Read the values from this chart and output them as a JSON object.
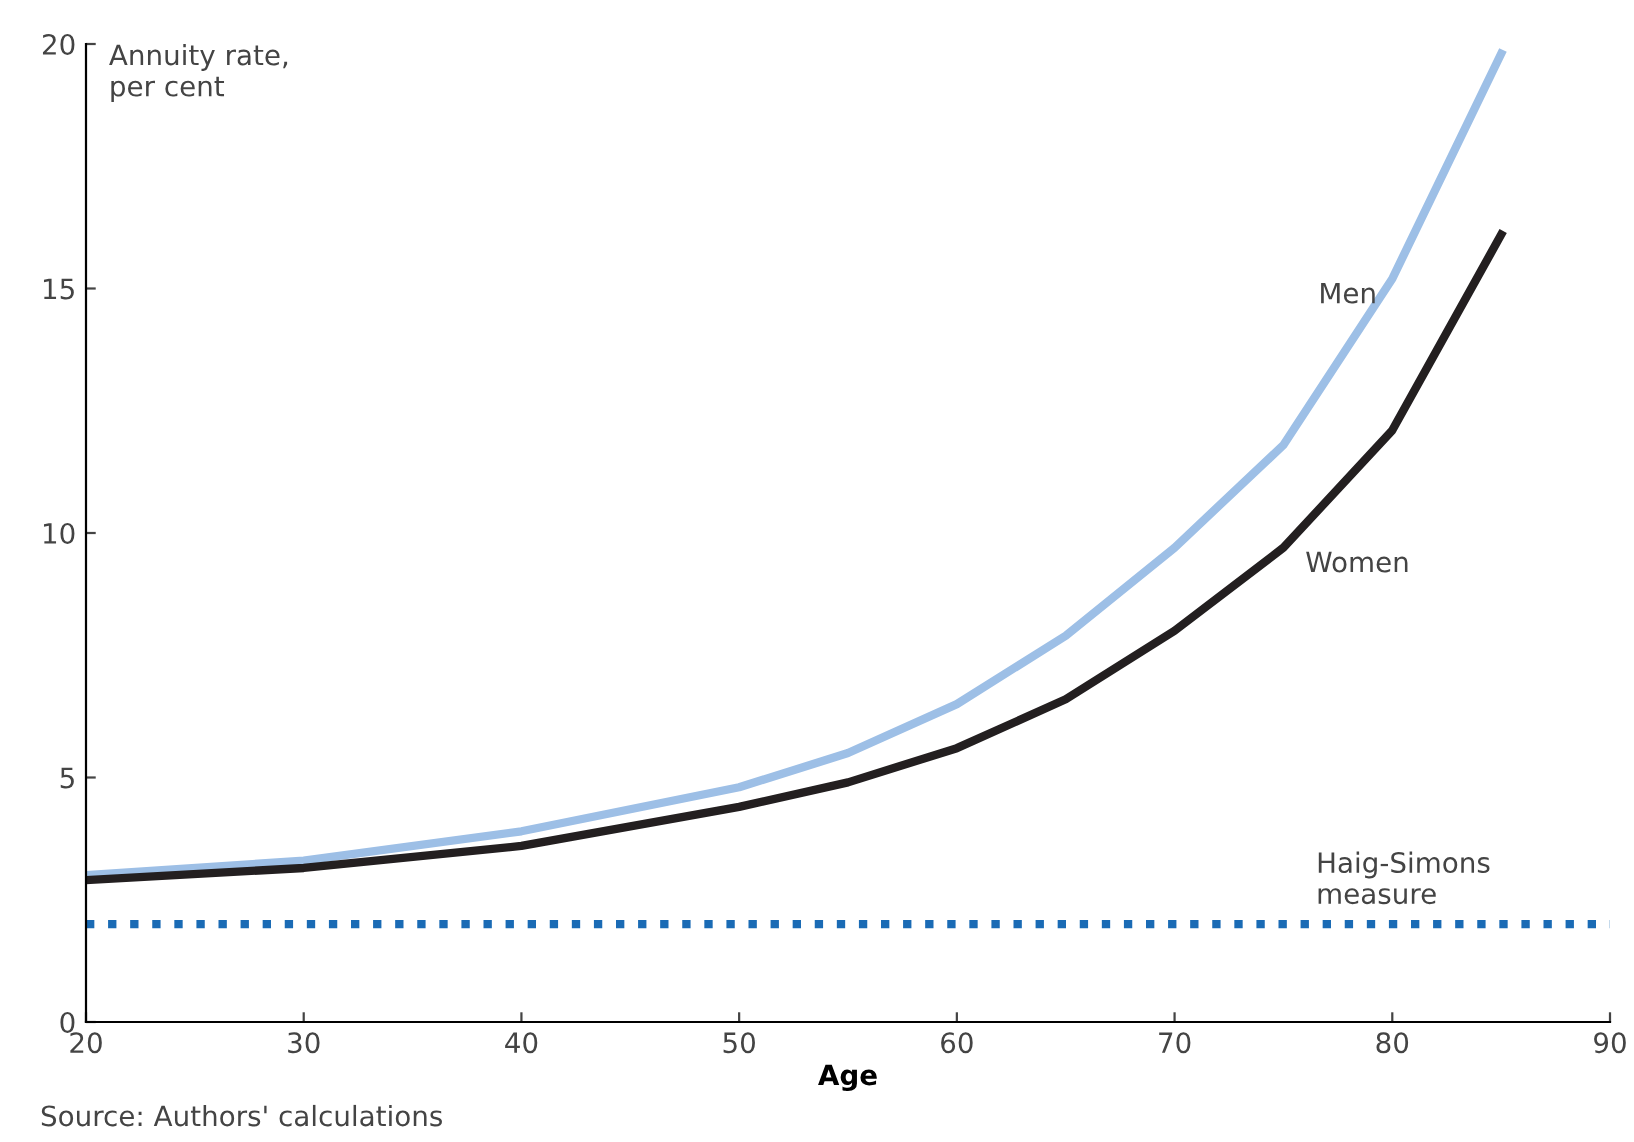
{
  "chart_data": {
    "type": "line",
    "xlabel": "Age",
    "ylabel": "Annuity rate,\nper cent",
    "xlim": [
      20,
      90
    ],
    "xticks": [
      20,
      30,
      40,
      50,
      60,
      70,
      80,
      90
    ],
    "ylim": [
      0,
      20
    ],
    "yticks": [
      0,
      5,
      10,
      15,
      20
    ],
    "grid": false,
    "legend": false,
    "marker": "none",
    "line_style": "solid",
    "series": [
      {
        "name": "Men",
        "color": "#9dbfe6",
        "x": [
          20,
          30,
          40,
          50,
          55,
          60,
          65,
          70,
          75,
          80,
          85
        ],
        "values": [
          3.0,
          3.3,
          3.9,
          4.8,
          5.5,
          6.5,
          7.9,
          9.7,
          11.8,
          15.2,
          19.8
        ]
      },
      {
        "name": "Women",
        "color": "#231f20",
        "x": [
          20,
          30,
          40,
          50,
          55,
          60,
          65,
          70,
          75,
          80,
          85
        ],
        "values": [
          2.9,
          3.15,
          3.6,
          4.4,
          4.9,
          5.6,
          6.6,
          8.0,
          9.7,
          12.1,
          16.1
        ]
      }
    ],
    "ref_lines": [
      {
        "axis": "y",
        "value": 2,
        "label": "Haig-Simons\nmeasure",
        "color": "#1a6bb5",
        "line_style": "dotted"
      }
    ],
    "annotations": [
      "Source: Authors' calculations"
    ]
  }
}
